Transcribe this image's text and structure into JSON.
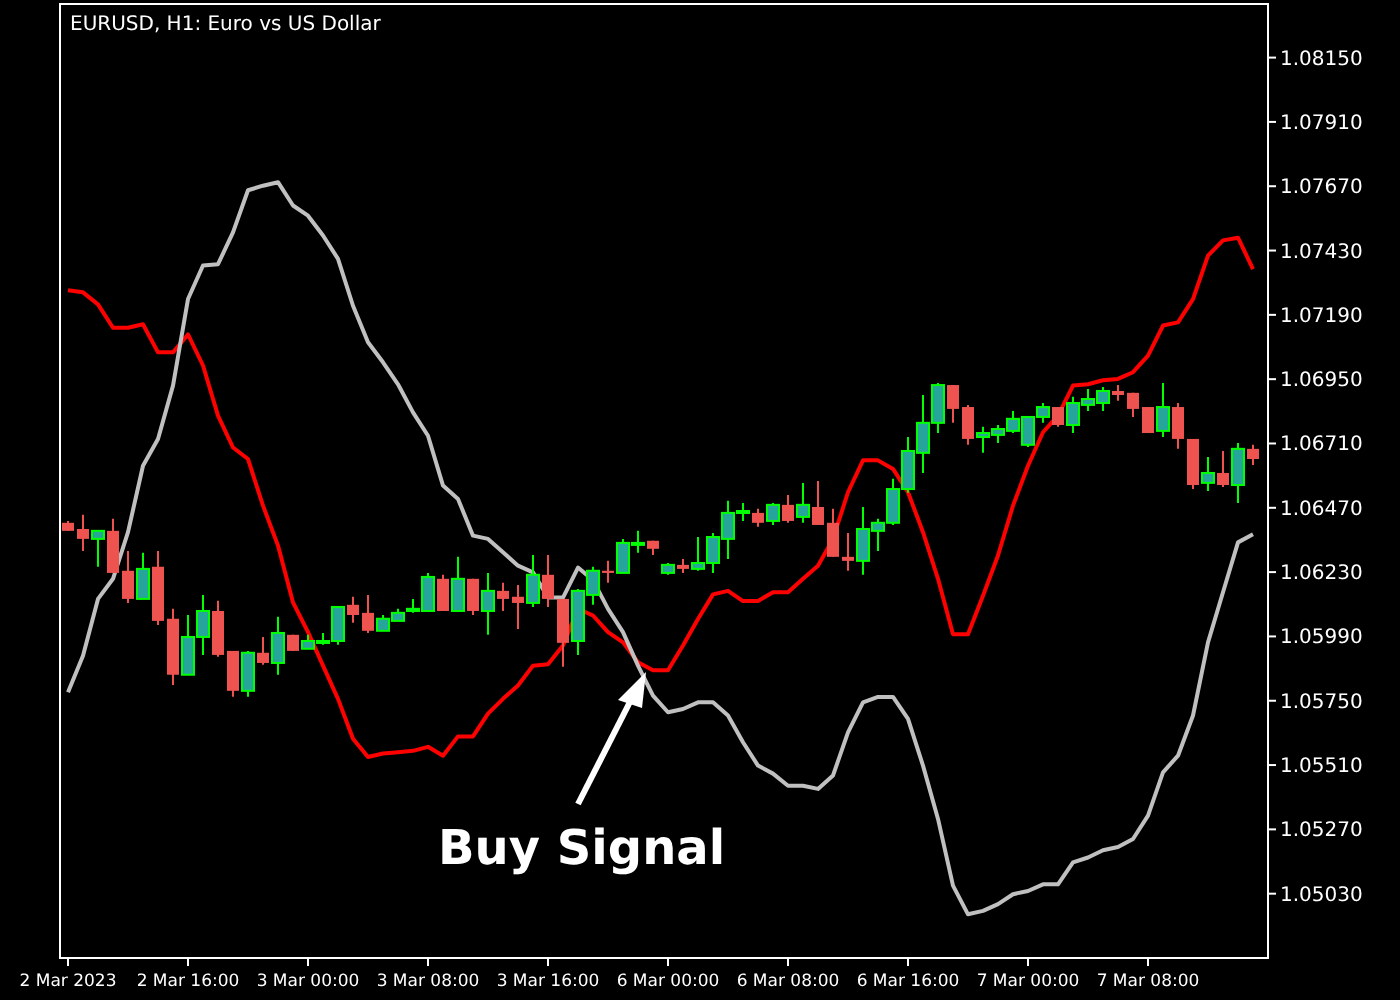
{
  "chart_data": {
    "type": "candlestick",
    "title": "EURUSD, H1:  Euro vs US Dollar",
    "categories": [
      "2 Mar 2023",
      null,
      null,
      null,
      null,
      null,
      null,
      null,
      "2 Mar 16:00",
      null,
      null,
      null,
      null,
      null,
      null,
      null,
      "3 Mar 00:00",
      null,
      null,
      null,
      null,
      null,
      null,
      null,
      "3 Mar 08:00",
      null,
      null,
      null,
      null,
      null,
      null,
      null,
      "3 Mar 16:00",
      null,
      null,
      null,
      null,
      null,
      null,
      null,
      "6 Mar 00:00",
      null,
      null,
      null,
      null,
      null,
      null,
      null,
      "6 Mar 08:00",
      null,
      null,
      null,
      null,
      null,
      null,
      null,
      "6 Mar 16:00",
      null,
      null,
      null,
      null,
      null,
      null,
      null,
      "7 Mar 00:00",
      null,
      null,
      null,
      null,
      null,
      null,
      null,
      "7 Mar 08:00",
      null,
      null,
      null,
      null,
      null,
      null,
      null
    ],
    "ohlc": [
      [
        1.06414,
        1.06421,
        1.06384,
        1.06384
      ],
      [
        1.06391,
        1.06444,
        1.06309,
        1.06354
      ],
      [
        1.06354,
        1.06384,
        1.0625,
        1.06384
      ],
      [
        1.06384,
        1.06429,
        1.06227,
        1.06227
      ],
      [
        1.06235,
        1.06309,
        1.06115,
        1.0613
      ],
      [
        1.0613,
        1.06302,
        1.0613,
        1.06242
      ],
      [
        1.0625,
        1.06309,
        1.06033,
        1.06048
      ],
      [
        1.06056,
        1.06093,
        1.05809,
        1.05847
      ],
      [
        1.05847,
        1.0607,
        1.05847,
        1.05988
      ],
      [
        1.05988,
        1.06145,
        1.05921,
        1.06085
      ],
      [
        1.06085,
        1.06123,
        1.05914,
        1.05921
      ],
      [
        1.05936,
        1.05936,
        1.05765,
        1.05787
      ],
      [
        1.05787,
        1.05936,
        1.05765,
        1.05929
      ],
      [
        1.05929,
        1.05988,
        1.05884,
        1.05891
      ],
      [
        1.05891,
        1.06063,
        1.05847,
        1.06003
      ],
      [
        1.05996,
        1.05996,
        1.05936,
        1.05936
      ],
      [
        1.05944,
        1.05996,
        1.05944,
        1.05973
      ],
      [
        1.05966,
        1.06003,
        1.05959,
        1.05973
      ],
      [
        1.05973,
        1.061,
        1.05959,
        1.061
      ],
      [
        1.06108,
        1.06138,
        1.06041,
        1.0607
      ],
      [
        1.06078,
        1.06145,
        1.06003,
        1.06011
      ],
      [
        1.06011,
        1.0607,
        1.06011,
        1.06056
      ],
      [
        1.06048,
        1.06093,
        1.06048,
        1.06078
      ],
      [
        1.06085,
        1.0613,
        1.06078,
        1.06093
      ],
      [
        1.06085,
        1.06227,
        1.06085,
        1.06212
      ],
      [
        1.06205,
        1.0622,
        1.06085,
        1.06085
      ],
      [
        1.06085,
        1.06287,
        1.06085,
        1.06205
      ],
      [
        1.06205,
        1.06205,
        1.0607,
        1.06085
      ],
      [
        1.06085,
        1.06227,
        1.05996,
        1.0616
      ],
      [
        1.0616,
        1.0619,
        1.06085,
        1.0613
      ],
      [
        1.06138,
        1.06182,
        1.06018,
        1.06115
      ],
      [
        1.06115,
        1.06294,
        1.061,
        1.0622
      ],
      [
        1.0622,
        1.06294,
        1.061,
        1.0613
      ],
      [
        1.0613,
        1.0613,
        1.05877,
        1.05966
      ],
      [
        1.05973,
        1.06167,
        1.05921,
        1.0616
      ],
      [
        1.06145,
        1.0625,
        1.06108,
        1.06235
      ],
      [
        1.06235,
        1.06272,
        1.0619,
        1.06227
      ],
      [
        1.06227,
        1.06354,
        1.06227,
        1.06339
      ],
      [
        1.06332,
        1.06384,
        1.06302,
        1.06339
      ],
      [
        1.06347,
        1.06347,
        1.06294,
        1.06317
      ],
      [
        1.06227,
        1.06264,
        1.0622,
        1.06257
      ],
      [
        1.06257,
        1.06279,
        1.06227,
        1.06242
      ],
      [
        1.06242,
        1.06361,
        1.06235,
        1.06264
      ],
      [
        1.06264,
        1.06376,
        1.06227,
        1.06361
      ],
      [
        1.06354,
        1.06496,
        1.06279,
        1.06451
      ],
      [
        1.06451,
        1.06488,
        1.06421,
        1.06458
      ],
      [
        1.06451,
        1.06466,
        1.06399,
        1.06414
      ],
      [
        1.06421,
        1.06488,
        1.06406,
        1.06481
      ],
      [
        1.06481,
        1.06518,
        1.06414,
        1.06421
      ],
      [
        1.06436,
        1.06563,
        1.06414,
        1.06481
      ],
      [
        1.06473,
        1.0657,
        1.06406,
        1.06406
      ],
      [
        1.06414,
        1.06466,
        1.06287,
        1.06287
      ],
      [
        1.06287,
        1.06376,
        1.06235,
        1.06272
      ],
      [
        1.06272,
        1.06473,
        1.0622,
        1.06391
      ],
      [
        1.06384,
        1.06429,
        1.06309,
        1.06414
      ],
      [
        1.06414,
        1.06578,
        1.06406,
        1.0654
      ],
      [
        1.0654,
        1.06734,
        1.06526,
        1.06682
      ],
      [
        1.06675,
        1.06891,
        1.066,
        1.06787
      ],
      [
        1.06787,
        1.06936,
        1.06749,
        1.06928
      ],
      [
        1.06928,
        1.06928,
        1.06787,
        1.06839
      ],
      [
        1.06846,
        1.06854,
        1.06705,
        1.06727
      ],
      [
        1.06734,
        1.06772,
        1.06675,
        1.06749
      ],
      [
        1.06742,
        1.06779,
        1.06712,
        1.06764
      ],
      [
        1.06757,
        1.06831,
        1.06749,
        1.06802
      ],
      [
        1.06705,
        1.06809,
        1.06697,
        1.06809
      ],
      [
        1.06809,
        1.06861,
        1.06787,
        1.06846
      ],
      [
        1.06846,
        1.06846,
        1.06772,
        1.06779
      ],
      [
        1.06779,
        1.06884,
        1.06749,
        1.06861
      ],
      [
        1.06854,
        1.06913,
        1.06831,
        1.06876
      ],
      [
        1.06861,
        1.06921,
        1.06831,
        1.06906
      ],
      [
        1.06906,
        1.06928,
        1.06869,
        1.06891
      ],
      [
        1.06899,
        1.06899,
        1.06809,
        1.06839
      ],
      [
        1.06846,
        1.06846,
        1.06749,
        1.06749
      ],
      [
        1.06757,
        1.06936,
        1.06734,
        1.06846
      ],
      [
        1.06846,
        1.06861,
        1.0669,
        1.06727
      ],
      [
        1.06727,
        1.06727,
        1.0654,
        1.06555
      ],
      [
        1.06563,
        1.0666,
        1.06533,
        1.066
      ],
      [
        1.066,
        1.06682,
        1.06548,
        1.06555
      ],
      [
        1.06555,
        1.06712,
        1.06488,
        1.0669
      ],
      [
        1.0669,
        1.06705,
        1.0663,
        1.06652
      ]
    ],
    "series": [
      {
        "type": "line",
        "color": "#ff0000",
        "values": [
          1.07282,
          1.07274,
          1.07229,
          1.07142,
          1.07142,
          1.07155,
          1.0705,
          1.0705,
          1.07117,
          1.07001,
          1.06814,
          1.06695,
          1.06652,
          1.06478,
          1.06329,
          1.06117,
          1.06006,
          1.05881,
          1.05757,
          1.05608,
          1.0554,
          1.05553,
          1.05558,
          1.05563,
          1.05578,
          1.05545,
          1.05617,
          1.05617,
          1.05702,
          1.05757,
          1.05807,
          1.05881,
          1.05886,
          1.05956,
          1.06093,
          1.06068,
          1.06006,
          1.05968,
          1.05894,
          1.05864,
          1.05864,
          1.05956,
          1.06055,
          1.06147,
          1.0616,
          1.06122,
          1.06122,
          1.06155,
          1.06155,
          1.06205,
          1.06254,
          1.06354,
          1.06528,
          1.06647,
          1.06647,
          1.06615,
          1.06528,
          1.06379,
          1.06205,
          1.05998,
          1.05998,
          1.06142,
          1.06292,
          1.06478,
          1.06627,
          1.06752,
          1.06814,
          1.06926,
          1.06931,
          1.06946,
          1.06951,
          1.06976,
          1.07038,
          1.0715,
          1.07162,
          1.07249,
          1.07411,
          1.07468,
          1.07478,
          1.07361
        ]
      },
      {
        "type": "line",
        "color": "#c0c0c0",
        "values": [
          1.05782,
          1.05918,
          1.0613,
          1.06205,
          1.06379,
          1.06627,
          1.06727,
          1.06926,
          1.07249,
          1.07374,
          1.07379,
          1.07498,
          1.07655,
          1.07672,
          1.07685,
          1.07598,
          1.0756,
          1.07486,
          1.07399,
          1.07224,
          1.07088,
          1.07013,
          1.06931,
          1.06826,
          1.06739,
          1.06553,
          1.06503,
          1.06366,
          1.06354,
          1.06304,
          1.06254,
          1.06229,
          1.06135,
          1.06135,
          1.06247,
          1.062,
          1.06093,
          1.06006,
          1.05881,
          1.05769,
          1.05707,
          1.05719,
          1.05744,
          1.05744,
          1.05695,
          1.05595,
          1.05508,
          1.05478,
          1.05433,
          1.05433,
          1.05421,
          1.05471,
          1.05632,
          1.05744,
          1.05764,
          1.05764,
          1.05682,
          1.05508,
          1.05309,
          1.0506,
          1.04953,
          1.04966,
          1.04991,
          1.05028,
          1.0504,
          1.05065,
          1.05065,
          1.05147,
          1.05165,
          1.05192,
          1.05204,
          1.05234,
          1.05321,
          1.05483,
          1.05545,
          1.05695,
          1.05968,
          1.06155,
          1.06341,
          1.06371
        ]
      }
    ],
    "ylim": [
      1.0479,
      1.0835
    ],
    "yticks": [
      {
        "value": 1.0815,
        "label": "1.08150"
      },
      {
        "value": 1.0791,
        "label": "1.07910"
      },
      {
        "value": 1.0767,
        "label": "1.07670"
      },
      {
        "value": 1.0743,
        "label": "1.07430"
      },
      {
        "value": 1.0719,
        "label": "1.07190"
      },
      {
        "value": 1.0695,
        "label": "1.06950"
      },
      {
        "value": 1.0671,
        "label": "1.06710"
      },
      {
        "value": 1.0647,
        "label": "1.06470"
      },
      {
        "value": 1.0623,
        "label": "1.06230"
      },
      {
        "value": 1.0599,
        "label": "1.05990"
      },
      {
        "value": 1.0575,
        "label": "1.05750"
      },
      {
        "value": 1.0551,
        "label": "1.05510"
      },
      {
        "value": 1.0527,
        "label": "1.05270"
      },
      {
        "value": 1.0503,
        "label": "1.05030"
      }
    ],
    "annotations": [
      "Buy Signal"
    ]
  }
}
